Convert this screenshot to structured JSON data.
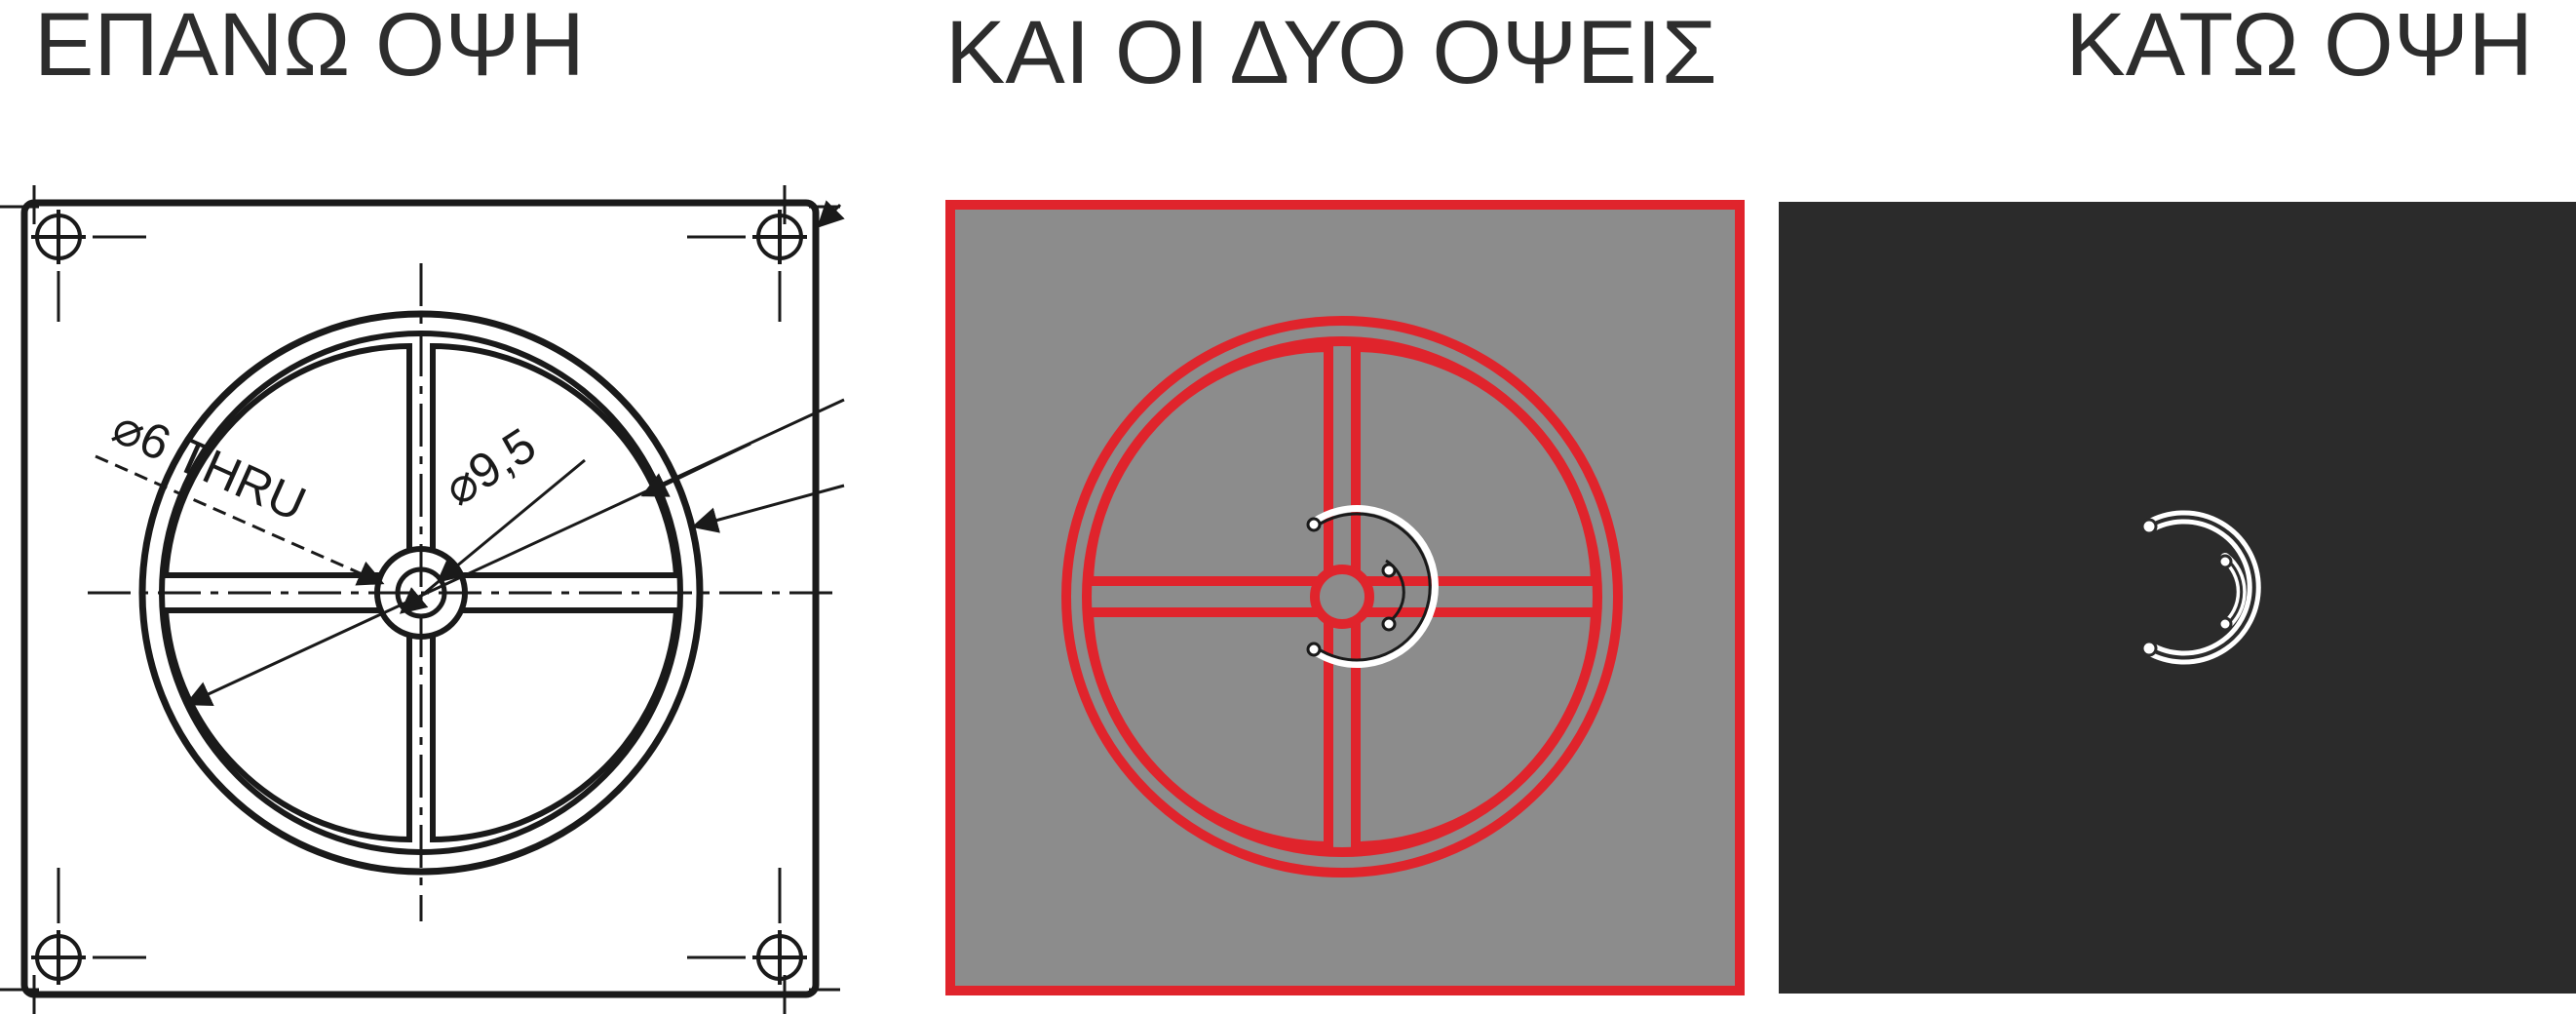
{
  "titles": {
    "top": "ΕΠΑΝΩ ΟΨΗ",
    "both": "ΚΑΙ ΟΙ ΔΥΟ ΟΨΕΙΣ",
    "bottom": "ΚΑΤΩ ΟΨΗ"
  },
  "drawing": {
    "hole_label": "⌀6 THRU",
    "diameter_label": "⌀9,5"
  },
  "colors": {
    "title": "#2d2d2d",
    "line": "#1a1a1a",
    "accent_red": "#e0242c",
    "panel_gray": "#8c8c8c",
    "panel_dark": "#2b2b2b",
    "trace_white": "#ffffff"
  }
}
